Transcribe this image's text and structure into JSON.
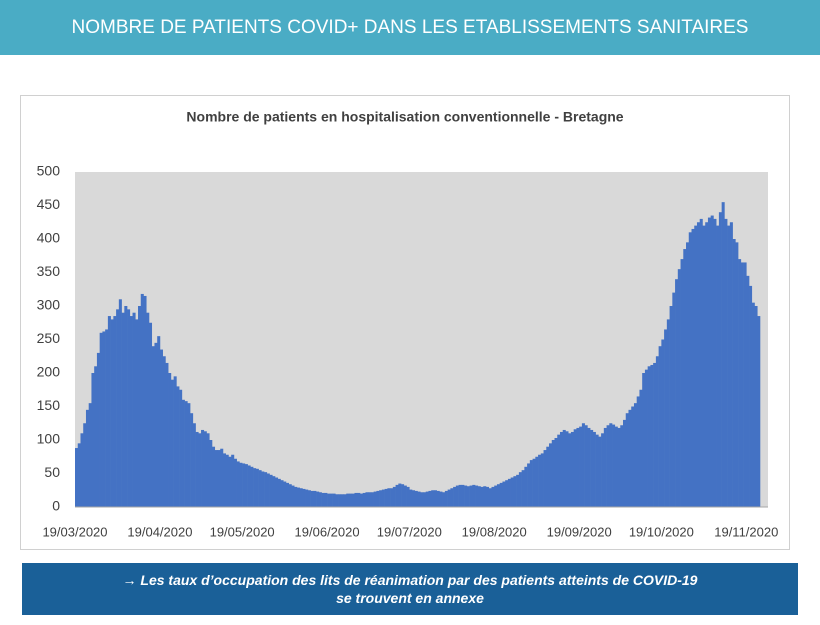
{
  "header": {
    "title": "NOMBRE DE PATIENTS COVID+ DANS LES ETABLISSEMENTS SANITAIRES"
  },
  "chart_data": {
    "type": "bar",
    "title": "Nombre de patients en hospitalisation conventionnelle - Bretagne",
    "color": "#4472c4",
    "grid": false,
    "ylim": [
      0,
      500
    ],
    "yticks": [
      0,
      50,
      100,
      150,
      200,
      250,
      300,
      350,
      400,
      450,
      500
    ],
    "categories": [
      "19/03/2020",
      null,
      null,
      null,
      null,
      null,
      null,
      null,
      null,
      null,
      null,
      null,
      null,
      null,
      null,
      null,
      null,
      null,
      null,
      null,
      null,
      null,
      null,
      null,
      null,
      null,
      null,
      null,
      null,
      null,
      null,
      "19/04/2020",
      null,
      null,
      null,
      null,
      null,
      null,
      null,
      null,
      null,
      null,
      null,
      null,
      null,
      null,
      null,
      null,
      null,
      null,
      null,
      null,
      null,
      null,
      null,
      null,
      null,
      null,
      null,
      null,
      null,
      "19/05/2020",
      null,
      null,
      null,
      null,
      null,
      null,
      null,
      null,
      null,
      null,
      null,
      null,
      null,
      null,
      null,
      null,
      null,
      null,
      null,
      null,
      null,
      null,
      null,
      null,
      null,
      null,
      null,
      null,
      null,
      null,
      "19/06/2020",
      null,
      null,
      null,
      null,
      null,
      null,
      null,
      null,
      null,
      null,
      null,
      null,
      null,
      null,
      null,
      null,
      null,
      null,
      null,
      null,
      null,
      null,
      null,
      null,
      null,
      null,
      null,
      null,
      null,
      "19/07/2020",
      null,
      null,
      null,
      null,
      null,
      null,
      null,
      null,
      null,
      null,
      null,
      null,
      null,
      null,
      null,
      null,
      null,
      null,
      null,
      null,
      null,
      null,
      null,
      null,
      null,
      null,
      null,
      null,
      null,
      null,
      "19/08/2020",
      null,
      null,
      null,
      null,
      null,
      null,
      null,
      null,
      null,
      null,
      null,
      null,
      null,
      null,
      null,
      null,
      null,
      null,
      null,
      null,
      null,
      null,
      null,
      null,
      null,
      null,
      null,
      null,
      null,
      null,
      "19/09/2020",
      null,
      null,
      null,
      null,
      null,
      null,
      null,
      null,
      null,
      null,
      null,
      null,
      null,
      null,
      null,
      null,
      null,
      null,
      null,
      null,
      null,
      null,
      null,
      null,
      null,
      null,
      null,
      null,
      null,
      "19/10/2020",
      null,
      null,
      null,
      null,
      null,
      null,
      null,
      null,
      null,
      null,
      null,
      null,
      null,
      null,
      null,
      null,
      null,
      null,
      null,
      null,
      null,
      null,
      null,
      null,
      null,
      null,
      null,
      null,
      null,
      null,
      "19/11/2020",
      null,
      null,
      null,
      null
    ],
    "values": [
      88,
      95,
      110,
      125,
      145,
      155,
      200,
      210,
      230,
      260,
      262,
      265,
      285,
      280,
      285,
      295,
      310,
      290,
      300,
      295,
      285,
      290,
      280,
      300,
      318,
      315,
      290,
      275,
      240,
      245,
      255,
      235,
      225,
      215,
      200,
      190,
      195,
      180,
      175,
      160,
      158,
      155,
      140,
      125,
      112,
      110,
      115,
      113,
      110,
      100,
      90,
      85,
      85,
      87,
      80,
      78,
      75,
      78,
      72,
      68,
      66,
      65,
      64,
      62,
      60,
      58,
      57,
      55,
      53,
      52,
      50,
      48,
      46,
      44,
      42,
      40,
      38,
      36,
      34,
      32,
      30,
      29,
      28,
      27,
      26,
      25,
      24,
      24,
      23,
      22,
      21,
      21,
      20,
      20,
      20,
      19,
      19,
      19,
      19,
      20,
      20,
      20,
      21,
      21,
      20,
      21,
      22,
      22,
      22,
      23,
      24,
      25,
      26,
      27,
      28,
      28,
      30,
      33,
      35,
      34,
      32,
      30,
      26,
      25,
      24,
      23,
      22,
      22,
      23,
      24,
      25,
      25,
      24,
      23,
      22,
      24,
      26,
      28,
      30,
      32,
      33,
      33,
      32,
      31,
      32,
      33,
      32,
      31,
      30,
      31,
      30,
      28,
      30,
      32,
      34,
      36,
      38,
      40,
      42,
      44,
      46,
      48,
      52,
      55,
      60,
      65,
      70,
      72,
      75,
      78,
      80,
      85,
      90,
      95,
      100,
      103,
      108,
      112,
      115,
      113,
      110,
      112,
      116,
      118,
      120,
      125,
      122,
      118,
      115,
      112,
      108,
      105,
      110,
      118,
      122,
      125,
      123,
      120,
      118,
      122,
      130,
      140,
      145,
      150,
      155,
      165,
      175,
      200,
      205,
      210,
      212,
      215,
      225,
      240,
      250,
      265,
      280,
      300,
      320,
      340,
      355,
      370,
      385,
      395,
      410,
      415,
      420,
      425,
      430,
      420,
      425,
      432,
      435,
      430,
      420,
      440,
      455,
      430,
      420,
      425,
      400,
      395,
      370,
      365,
      365,
      345,
      330,
      305,
      300,
      285
    ]
  },
  "footer": {
    "lines": [
      "→ Les taux d’occupation des lits de réanimation par des patients atteints de COVID-19",
      "se trouvent en annexe"
    ]
  }
}
